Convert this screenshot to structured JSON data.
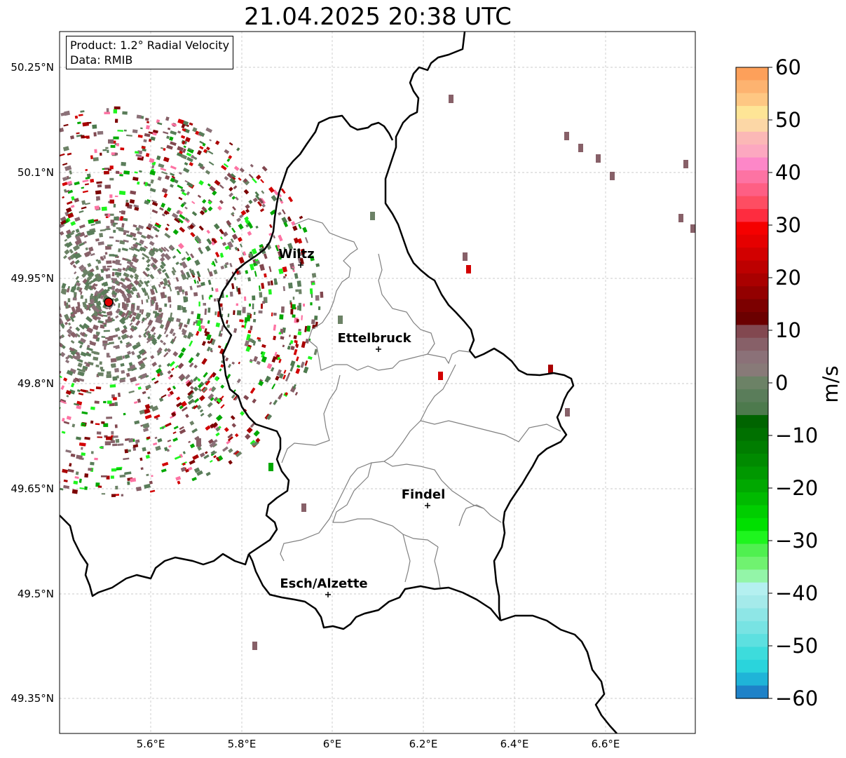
{
  "title": "21.04.2025 20:38 UTC",
  "info": {
    "product": "Product: 1.2° Radial Velocity",
    "data": "Data: RMIB"
  },
  "axes": {
    "lon_ticks": [
      "5.6°E",
      "5.8°E",
      "6°E",
      "6.2°E",
      "6.4°E",
      "6.6°E"
    ],
    "lat_ticks": [
      "50.25°N",
      "50.1°N",
      "49.95°N",
      "49.8°N",
      "49.65°N",
      "49.5°N",
      "49.35°N"
    ]
  },
  "cities": [
    {
      "name": "Wiltz"
    },
    {
      "name": "Ettelbruck"
    },
    {
      "name": "Findel"
    },
    {
      "name": "Esch/Alzette"
    }
  ],
  "colorbar": {
    "unit": "m/s",
    "tick_labels": [
      "60",
      "50",
      "40",
      "30",
      "20",
      "10",
      "0",
      "−10",
      "−20",
      "−30",
      "−40",
      "−50",
      "−60"
    ],
    "range": [
      -60,
      60
    ],
    "colors": [
      "#fda05a",
      "#fdb370",
      "#fec783",
      "#fee596",
      "#fcd7a6",
      "#fbb8b6",
      "#fca8c0",
      "#fd87c8",
      "#fd73a3",
      "#fe5f84",
      "#fe4d62",
      "#fe2c3f",
      "#f50000",
      "#e50000",
      "#d20000",
      "#bd0000",
      "#a90000",
      "#930000",
      "#7c0000",
      "#6b0000",
      "#824850",
      "#876068",
      "#8b7178",
      "#887a78",
      "#6c8266",
      "#5a7d5a",
      "#4d7a4d",
      "#006400",
      "#007000",
      "#007d00",
      "#008a00",
      "#009800",
      "#00a800",
      "#00ba00",
      "#00ce00",
      "#00e000",
      "#1ef51e",
      "#50f050",
      "#70f270",
      "#93f5a8",
      "#b4f0f0",
      "#a5eaea",
      "#8ee6e6",
      "#78e3e3",
      "#5de0e0",
      "#3ddcdc",
      "#2ad4dc",
      "#1fb4d8",
      "#1e82c8"
    ]
  },
  "radar": {
    "site_name": "radar-site"
  }
}
